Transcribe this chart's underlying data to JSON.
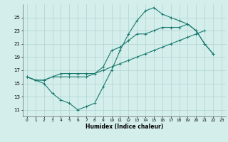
{
  "xlabel": "Humidex (Indice chaleur)",
  "bg_color": "#d4eeec",
  "grid_color": "#aed4d0",
  "line_color": "#1a7a6e",
  "xlim": [
    -0.5,
    23.5
  ],
  "ylim": [
    10.0,
    27.0
  ],
  "xticks": [
    0,
    1,
    2,
    3,
    4,
    5,
    6,
    7,
    8,
    9,
    10,
    11,
    12,
    13,
    14,
    15,
    16,
    17,
    18,
    19,
    20,
    21,
    22,
    23
  ],
  "yticks": [
    11,
    13,
    15,
    17,
    19,
    21,
    23,
    25
  ],
  "line1_x": [
    0,
    1,
    2,
    3,
    4,
    5,
    6,
    7,
    8,
    9,
    10,
    11,
    12,
    13,
    14,
    15,
    16,
    17,
    18,
    19,
    20,
    21,
    22
  ],
  "line1_y": [
    16.0,
    15.5,
    15.0,
    13.5,
    12.5,
    12.0,
    11.0,
    11.5,
    12.0,
    14.5,
    17.0,
    20.0,
    22.5,
    24.5,
    26.0,
    26.5,
    25.5,
    25.0,
    24.5,
    24.0,
    23.0,
    21.0,
    19.5
  ],
  "line2_x": [
    0,
    1,
    2,
    3,
    4,
    5,
    6,
    7,
    8,
    9,
    10,
    11,
    12,
    13,
    14,
    15,
    16,
    17,
    18,
    19,
    20,
    21
  ],
  "line2_y": [
    16.0,
    15.5,
    15.5,
    16.0,
    16.0,
    16.0,
    16.0,
    16.0,
    16.5,
    17.0,
    17.5,
    18.0,
    18.5,
    19.0,
    19.5,
    20.0,
    20.5,
    21.0,
    21.5,
    22.0,
    22.5,
    23.0
  ],
  "line3_x": [
    0,
    1,
    2,
    3,
    4,
    5,
    6,
    7,
    8,
    9,
    10,
    11,
    12,
    13,
    14,
    15,
    16,
    17,
    18,
    19,
    20,
    21,
    22
  ],
  "line3_y": [
    16.0,
    15.5,
    15.5,
    16.0,
    16.5,
    16.5,
    16.5,
    16.5,
    16.5,
    17.5,
    20.0,
    20.5,
    21.5,
    22.5,
    22.5,
    23.0,
    23.5,
    23.5,
    23.5,
    24.0,
    23.0,
    21.0,
    19.5
  ]
}
